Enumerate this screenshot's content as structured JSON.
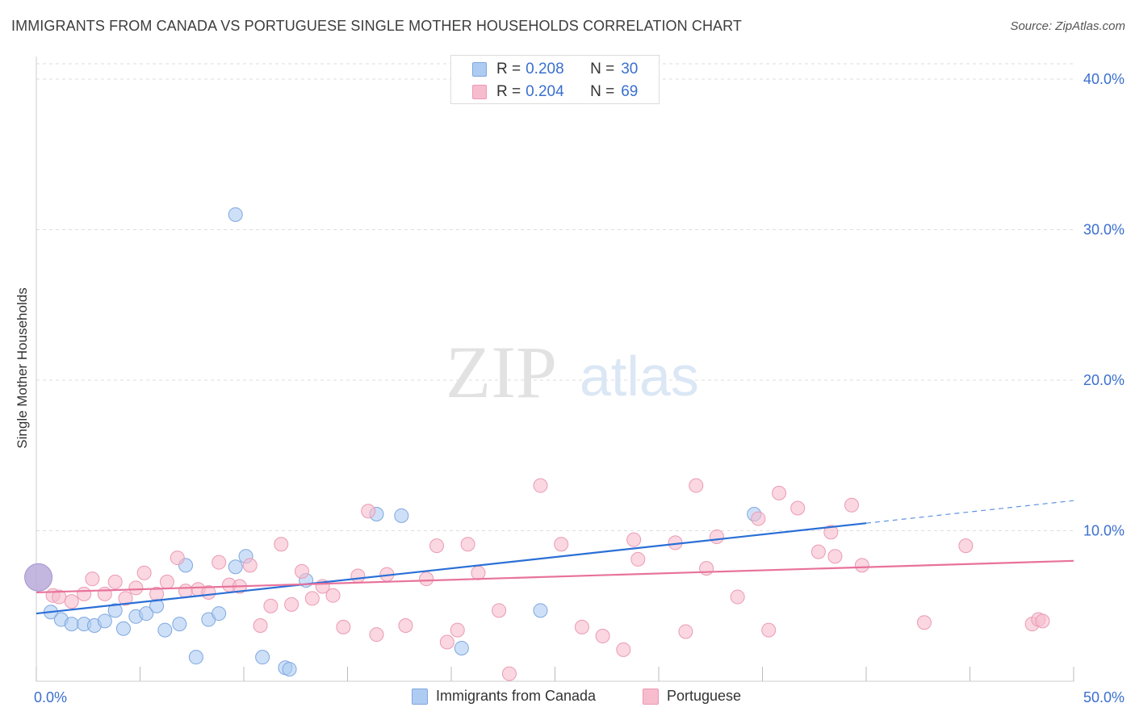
{
  "header": {
    "title": "IMMIGRANTS FROM CANADA VS PORTUGUESE SINGLE MOTHER HOUSEHOLDS CORRELATION CHART",
    "source": "Source: ZipAtlas.com"
  },
  "watermark": {
    "zip": "ZIP",
    "atlas": "atlas"
  },
  "colors": {
    "canada_fill": "#aecbf2",
    "canada_stroke": "#7ea7e0",
    "canada_line": "#2a6fd6",
    "portuguese_fill": "#f7bccd",
    "portuguese_stroke": "#eb9ab3",
    "portuguese_line": "#e8729b",
    "tick_label": "#3a6fcf",
    "grid": "#dddddd"
  },
  "legend": {
    "r_label": "R =",
    "n_label": "N =",
    "items": [
      {
        "name": "Immigrants from Canada",
        "r": "0.208",
        "n": "30"
      },
      {
        "name": "Portuguese",
        "r": "0.204",
        "n": "69"
      }
    ]
  },
  "chart_data": {
    "type": "scatter",
    "title": "IMMIGRANTS FROM CANADA VS PORTUGUESE SINGLE MOTHER HOUSEHOLDS CORRELATION CHART",
    "xlabel": "",
    "ylabel": "Single Mother Households",
    "xlim": [
      0,
      50
    ],
    "ylim": [
      0,
      41.5
    ],
    "x_tick_labels": [
      {
        "value": 0,
        "label": "0.0%"
      },
      {
        "value": 50,
        "label": "50.0%"
      }
    ],
    "x_tick_marks": [
      0,
      5,
      10,
      15,
      20,
      25,
      30,
      35,
      40,
      45,
      50
    ],
    "y_ticks": [
      {
        "value": 10,
        "label": "10.0%"
      },
      {
        "value": 20,
        "label": "20.0%"
      },
      {
        "value": 30,
        "label": "30.0%"
      },
      {
        "value": 40,
        "label": "40.0%"
      }
    ],
    "grid": "horizontal dashed",
    "legend_position": "top-center",
    "series": [
      {
        "name": "Immigrants from Canada",
        "r": 0.208,
        "n": 30,
        "trend": {
          "x0": 0,
          "y0": 4.5,
          "x1": 40,
          "y1": 10.5,
          "dashed_to_x": 50,
          "dashed_to_y": 12.0
        },
        "points": [
          [
            0.1,
            6.9,
            "large"
          ],
          [
            0.7,
            4.6
          ],
          [
            1.2,
            4.1
          ],
          [
            1.7,
            3.8
          ],
          [
            2.3,
            3.8
          ],
          [
            2.8,
            3.7
          ],
          [
            3.3,
            4.0
          ],
          [
            3.8,
            4.7
          ],
          [
            4.2,
            3.5
          ],
          [
            4.8,
            4.3
          ],
          [
            5.3,
            4.5
          ],
          [
            5.8,
            5.0
          ],
          [
            6.2,
            3.4
          ],
          [
            6.9,
            3.8
          ],
          [
            7.2,
            7.7
          ],
          [
            7.7,
            1.6
          ],
          [
            8.3,
            4.1
          ],
          [
            8.8,
            4.5
          ],
          [
            9.6,
            31.0
          ],
          [
            9.6,
            7.6
          ],
          [
            10.1,
            8.3
          ],
          [
            10.9,
            1.6
          ],
          [
            12.0,
            0.9
          ],
          [
            12.2,
            0.8
          ],
          [
            13.0,
            6.7
          ],
          [
            16.4,
            11.1
          ],
          [
            17.6,
            11.0
          ],
          [
            20.5,
            2.2
          ],
          [
            24.3,
            4.7
          ],
          [
            34.6,
            11.1
          ]
        ]
      },
      {
        "name": "Portuguese",
        "r": 0.204,
        "n": 69,
        "trend": {
          "x0": 0,
          "y0": 5.9,
          "x1": 50,
          "y1": 8.0
        },
        "points": [
          [
            0.8,
            5.7
          ],
          [
            1.1,
            5.6
          ],
          [
            1.7,
            5.3
          ],
          [
            2.3,
            5.8
          ],
          [
            2.7,
            6.8
          ],
          [
            3.3,
            5.8
          ],
          [
            3.8,
            6.6
          ],
          [
            4.3,
            5.5
          ],
          [
            4.8,
            6.2
          ],
          [
            5.2,
            7.2
          ],
          [
            5.8,
            5.8
          ],
          [
            6.3,
            6.6
          ],
          [
            6.8,
            8.2
          ],
          [
            7.2,
            6.0
          ],
          [
            7.8,
            6.1
          ],
          [
            8.3,
            5.9
          ],
          [
            8.8,
            7.9
          ],
          [
            9.3,
            6.4
          ],
          [
            9.8,
            6.3
          ],
          [
            10.3,
            7.7
          ],
          [
            10.8,
            3.7
          ],
          [
            11.3,
            5.0
          ],
          [
            11.8,
            9.1
          ],
          [
            12.3,
            5.1
          ],
          [
            12.8,
            7.3
          ],
          [
            13.3,
            5.5
          ],
          [
            13.8,
            6.3
          ],
          [
            14.3,
            5.7
          ],
          [
            14.8,
            3.6
          ],
          [
            15.5,
            7.0
          ],
          [
            16.0,
            11.3
          ],
          [
            16.4,
            3.1
          ],
          [
            16.9,
            7.1
          ],
          [
            17.8,
            3.7
          ],
          [
            18.8,
            6.8
          ],
          [
            19.3,
            9.0
          ],
          [
            19.8,
            2.6
          ],
          [
            20.3,
            3.4
          ],
          [
            20.8,
            9.1
          ],
          [
            21.3,
            7.2
          ],
          [
            22.3,
            4.7
          ],
          [
            22.8,
            0.5
          ],
          [
            24.3,
            13.0
          ],
          [
            25.3,
            9.1
          ],
          [
            26.3,
            3.6
          ],
          [
            27.3,
            3.0
          ],
          [
            28.3,
            2.1
          ],
          [
            28.8,
            9.4
          ],
          [
            29.0,
            8.1
          ],
          [
            30.8,
            9.2
          ],
          [
            31.3,
            3.3
          ],
          [
            31.8,
            13.0
          ],
          [
            32.3,
            7.5
          ],
          [
            32.8,
            9.6
          ],
          [
            33.8,
            5.6
          ],
          [
            34.8,
            10.8
          ],
          [
            35.3,
            3.4
          ],
          [
            35.8,
            12.5
          ],
          [
            36.7,
            11.5
          ],
          [
            37.7,
            8.6
          ],
          [
            38.3,
            9.9
          ],
          [
            38.5,
            8.3
          ],
          [
            39.3,
            11.7
          ],
          [
            39.8,
            7.7
          ],
          [
            42.8,
            3.9
          ],
          [
            44.8,
            9.0
          ],
          [
            48.0,
            3.8
          ],
          [
            48.3,
            4.1
          ],
          [
            48.5,
            4.0
          ]
        ]
      }
    ]
  }
}
